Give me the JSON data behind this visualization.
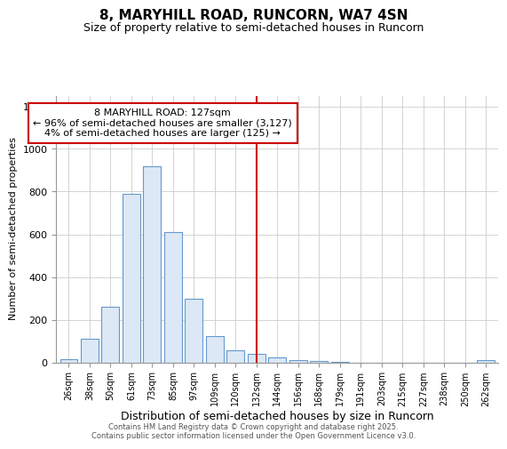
{
  "title1": "8, MARYHILL ROAD, RUNCORN, WA7 4SN",
  "title2": "Size of property relative to semi-detached houses in Runcorn",
  "xlabel": "Distribution of semi-detached houses by size in Runcorn",
  "ylabel": "Number of semi-detached properties",
  "bar_labels": [
    "26sqm",
    "38sqm",
    "50sqm",
    "61sqm",
    "73sqm",
    "85sqm",
    "97sqm",
    "109sqm",
    "120sqm",
    "132sqm",
    "144sqm",
    "156sqm",
    "168sqm",
    "179sqm",
    "191sqm",
    "203sqm",
    "215sqm",
    "227sqm",
    "238sqm",
    "250sqm",
    "262sqm"
  ],
  "bar_values": [
    15,
    110,
    260,
    790,
    920,
    610,
    300,
    125,
    55,
    40,
    25,
    10,
    5,
    2,
    0,
    0,
    0,
    0,
    0,
    0,
    10
  ],
  "bar_color": "#dce8f5",
  "bar_edge_color": "#6699cc",
  "vline_x": 9.0,
  "vline_color": "#cc0000",
  "annotation_text": "8 MARYHILL ROAD: 127sqm\n← 96% of semi-detached houses are smaller (3,127)\n4% of semi-detached houses are larger (125) →",
  "annotation_box_color": "#ffffff",
  "annotation_box_edge": "#cc0000",
  "ylim": [
    0,
    1250
  ],
  "yticks": [
    0,
    200,
    400,
    600,
    800,
    1000,
    1200
  ],
  "bg_color": "#ffffff",
  "grid_color": "#cccccc",
  "footer1": "Contains HM Land Registry data © Crown copyright and database right 2025.",
  "footer2": "Contains public sector information licensed under the Open Government Licence v3.0."
}
